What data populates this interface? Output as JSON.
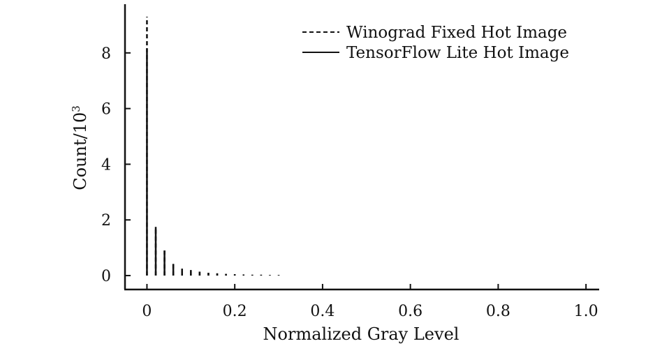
{
  "chart_data": {
    "type": "bar",
    "title": "",
    "xlabel": "Normalized Gray Level",
    "ylabel": "Count/10",
    "ylabel_superscript": "3",
    "xlim": [
      -0.05,
      1.03
    ],
    "ylim": [
      -0.5,
      9.75
    ],
    "xticks": [
      0,
      0.2,
      0.4,
      0.6,
      0.8,
      1.0
    ],
    "xtick_labels": [
      "0",
      "0.2",
      "0.4",
      "0.6",
      "0.8",
      "1.0"
    ],
    "yticks": [
      0,
      2,
      4,
      6,
      8
    ],
    "ytick_labels": [
      "0",
      "2",
      "4",
      "6",
      "8"
    ],
    "grid": false,
    "legend_position": "top-right",
    "series": [
      {
        "name": "Winograd Fixed Hot Image",
        "line_style": "dashed",
        "x": [
          0,
          0.02,
          0.04,
          0.06,
          0.08,
          0.1,
          0.12,
          0.14,
          0.16,
          0.18,
          0.2,
          0.22,
          0.24,
          0.26,
          0.28,
          0.3
        ],
        "values": [
          9.3,
          1.75,
          0.9,
          0.42,
          0.25,
          0.2,
          0.14,
          0.1,
          0.08,
          0.06,
          0.05,
          0.04,
          0.03,
          0.03,
          0.02,
          0.02
        ]
      },
      {
        "name": "TensorFlow Lite Hot Image",
        "line_style": "solid",
        "x": [
          0,
          0.02,
          0.04,
          0.06,
          0.08,
          0.1,
          0.12,
          0.14,
          0.16,
          0.18,
          0.2,
          0.22,
          0.24,
          0.26,
          0.28,
          0.3
        ],
        "values": [
          8.15,
          1.75,
          0.9,
          0.42,
          0.25,
          0.2,
          0.14,
          0.1,
          0.08,
          0.06,
          0.05,
          0.04,
          0.03,
          0.03,
          0.02,
          0.02
        ]
      }
    ]
  },
  "colors": {
    "ink": "#111111",
    "background": "#ffffff"
  }
}
